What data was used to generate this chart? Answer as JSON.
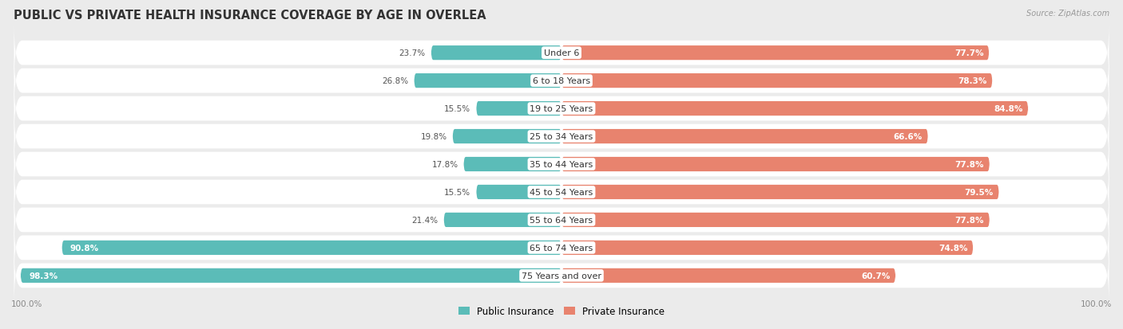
{
  "title": "PUBLIC VS PRIVATE HEALTH INSURANCE COVERAGE BY AGE IN OVERLEA",
  "source": "Source: ZipAtlas.com",
  "categories": [
    "Under 6",
    "6 to 18 Years",
    "19 to 25 Years",
    "25 to 34 Years",
    "35 to 44 Years",
    "45 to 54 Years",
    "55 to 64 Years",
    "65 to 74 Years",
    "75 Years and over"
  ],
  "public_values": [
    23.7,
    26.8,
    15.5,
    19.8,
    17.8,
    15.5,
    21.4,
    90.8,
    98.3
  ],
  "private_values": [
    77.7,
    78.3,
    84.8,
    66.6,
    77.8,
    79.5,
    77.8,
    74.8,
    60.7
  ],
  "public_color": "#5bbcb8",
  "private_color": "#e8836e",
  "bg_color": "#ebebeb",
  "max_value": 100.0,
  "title_fontsize": 10.5,
  "label_fontsize": 8.0,
  "value_fontsize": 7.5,
  "legend_fontsize": 8.5
}
